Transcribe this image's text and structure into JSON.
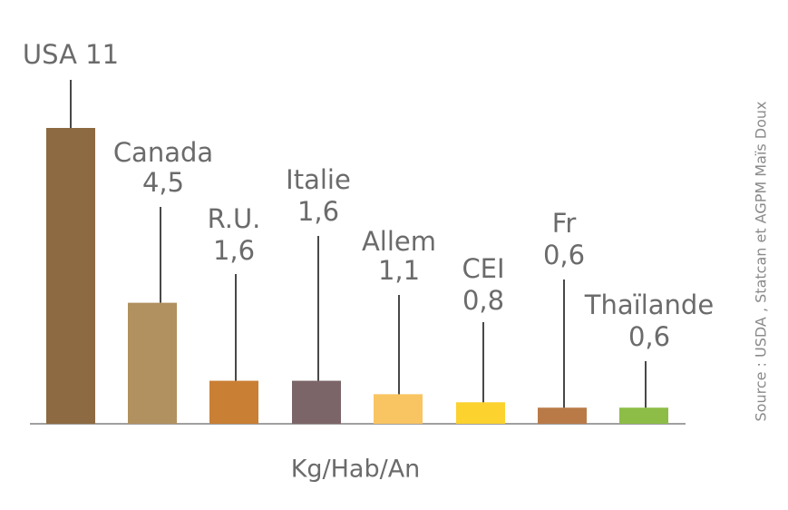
{
  "chart_data": {
    "type": "bar",
    "categories": [
      "USA",
      "Canada",
      "R.U.",
      "Italie",
      "Allem",
      "CEI",
      "Fr",
      "Thaïlande"
    ],
    "values": [
      11,
      4.5,
      1.6,
      1.6,
      1.1,
      0.8,
      0.6,
      0.6
    ],
    "value_labels": [
      "11",
      "4,5",
      "1,6",
      "1,6",
      "1,1",
      "0,8",
      "0,6",
      "0,6"
    ],
    "colors": [
      "#8d6a42",
      "#b1915f",
      "#c97f34",
      "#7c6569",
      "#f9c462",
      "#fbd22e",
      "#b97a48",
      "#8dbd47"
    ],
    "axis_label": "Kg/Hab/An",
    "source": "Source : USDA , Statcan et AGPM Maïs Doux"
  }
}
